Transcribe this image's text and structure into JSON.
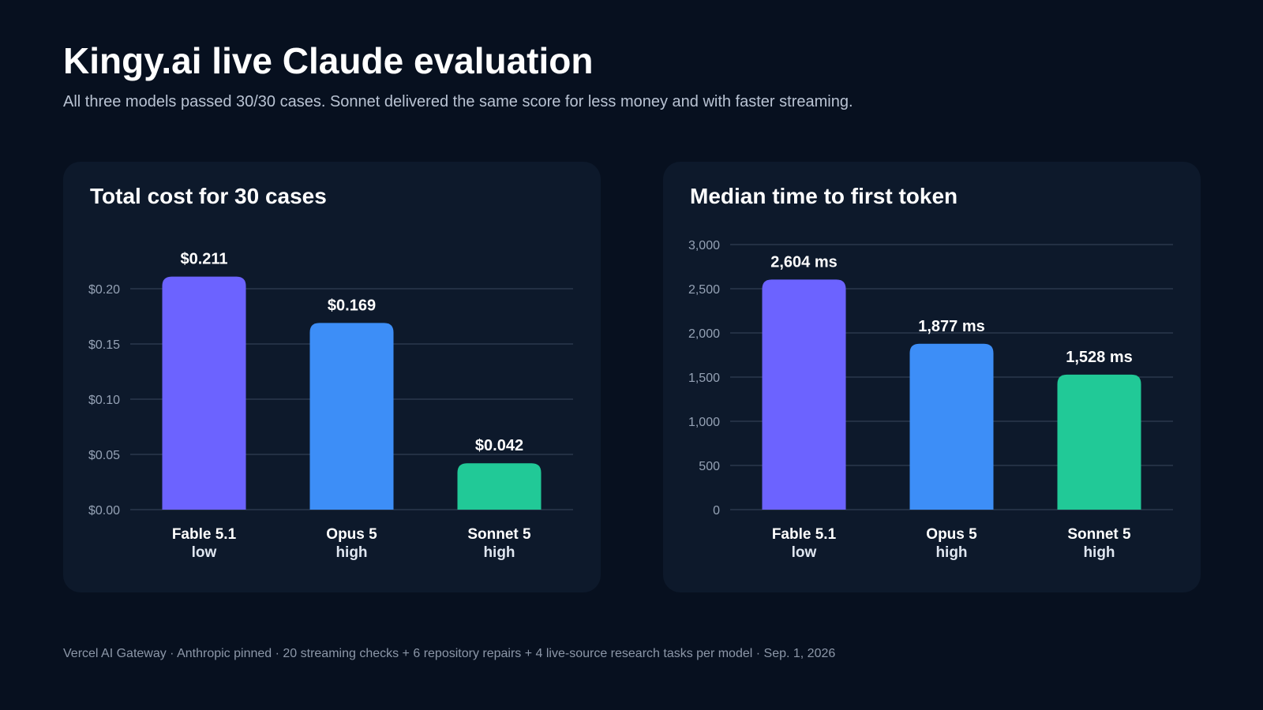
{
  "header": {
    "title": "Kingy.ai live Claude evaluation",
    "subtitle": "All three models passed 30/30 cases. Sonnet delivered the same score for less money and with faster streaming."
  },
  "footer": {
    "text": "Vercel AI Gateway · Anthropic pinned · 20 streaming checks + 6 repository repairs + 4 live-source research tasks per model · Sep. 1, 2026"
  },
  "chart_data": [
    {
      "type": "bar",
      "title": "Total cost for 30 cases",
      "categories": [
        "Fable 5.1",
        "Opus 5",
        "Sonnet 5"
      ],
      "category_subtitles": [
        "low",
        "high",
        "high"
      ],
      "values": [
        0.211,
        0.169,
        0.042
      ],
      "value_labels": [
        "$0.211",
        "$0.169",
        "$0.042"
      ],
      "ylim": [
        0,
        0.2
      ],
      "yticks": [
        0,
        0.05,
        0.1,
        0.15,
        0.2
      ],
      "ytick_labels": [
        "$0.00",
        "$0.05",
        "$0.10",
        "$0.15",
        "$0.20"
      ],
      "colors": [
        "#6c63ff",
        "#3d8ef7",
        "#21c997"
      ],
      "grid": true,
      "xlabel": "",
      "ylabel": ""
    },
    {
      "type": "bar",
      "title": "Median time to first token",
      "categories": [
        "Fable 5.1",
        "Opus 5",
        "Sonnet 5"
      ],
      "category_subtitles": [
        "low",
        "high",
        "high"
      ],
      "values": [
        2604,
        1877,
        1528
      ],
      "value_labels": [
        "2,604 ms",
        "1,877 ms",
        "1,528 ms"
      ],
      "ylim": [
        0,
        3000
      ],
      "yticks": [
        0,
        500,
        1000,
        1500,
        2000,
        2500,
        3000
      ],
      "ytick_labels": [
        "0",
        "500",
        "1,000",
        "1,500",
        "2,000",
        "2,500",
        "3,000"
      ],
      "colors": [
        "#6c63ff",
        "#3d8ef7",
        "#21c997"
      ],
      "grid": true,
      "xlabel": "",
      "ylabel": ""
    }
  ]
}
